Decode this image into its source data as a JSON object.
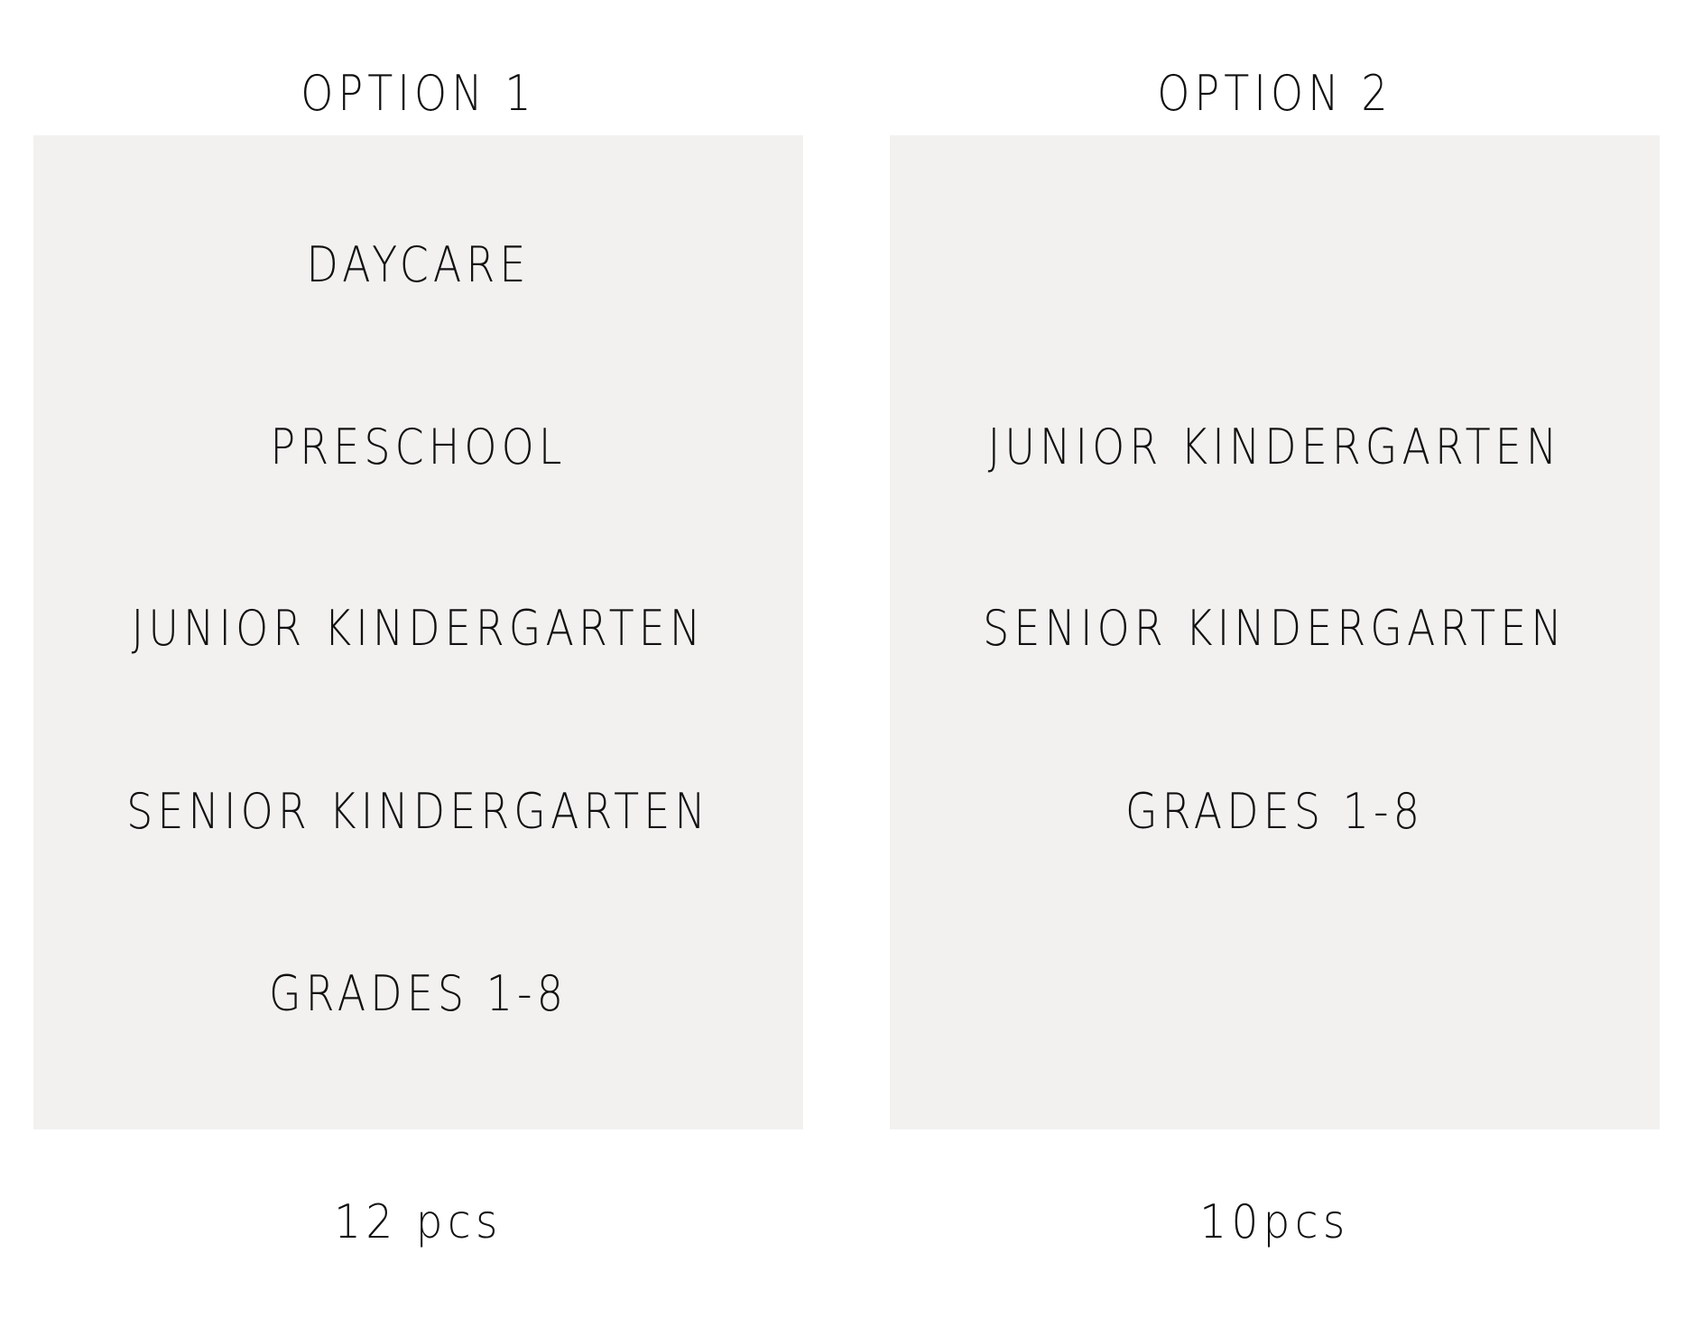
{
  "options": [
    {
      "title": "OPTION 1",
      "items": [
        "DAYCARE",
        "PRESCHOOL",
        "JUNIOR KINDERGARTEN",
        "SENIOR KINDERGARTEN",
        "GRADES 1-8"
      ],
      "quantity": "12 pcs"
    },
    {
      "title": "OPTION 2",
      "items": [
        "JUNIOR KINDERGARTEN",
        "SENIOR KINDERGARTEN",
        "GRADES 1-8"
      ],
      "quantity": "10pcs"
    }
  ],
  "colors": {
    "panel": "#f2f1f0",
    "text": "#111111"
  }
}
